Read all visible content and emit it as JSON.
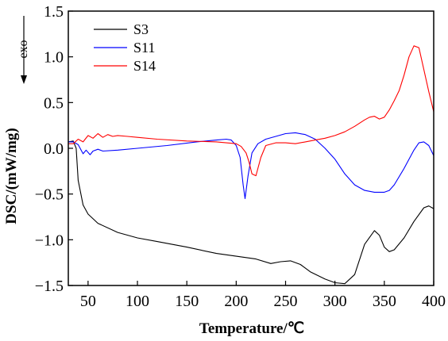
{
  "chart_data": {
    "type": "line",
    "xlabel": "Temperature/℃",
    "ylabel": "DSC/(mW/mg)",
    "xlim": [
      30,
      400
    ],
    "ylim": [
      -1.5,
      1.5
    ],
    "x_ticks": [
      50,
      100,
      150,
      200,
      250,
      300,
      350,
      400
    ],
    "y_ticks": [
      -1.5,
      -1.0,
      -0.5,
      0.0,
      0.5,
      1.0,
      1.5
    ],
    "x_tick_labels": [
      "50",
      "100",
      "150",
      "200",
      "250",
      "300",
      "350",
      "400"
    ],
    "y_tick_labels": [
      "−1.5",
      "−1.0",
      "−0.5",
      "0.0",
      "0.5",
      "1.0",
      "1.5"
    ],
    "annotation": "exo",
    "legend_position": "top-left",
    "series": [
      {
        "name": "S3",
        "color": "#000000",
        "x": [
          30,
          35,
          38,
          40,
          45,
          50,
          60,
          80,
          100,
          120,
          150,
          180,
          200,
          220,
          235,
          245,
          255,
          265,
          275,
          290,
          300,
          310,
          320,
          330,
          340,
          345,
          350,
          355,
          360,
          370,
          380,
          390,
          395,
          400
        ],
        "y": [
          0.07,
          0.08,
          0.0,
          -0.35,
          -0.62,
          -0.72,
          -0.82,
          -0.92,
          -0.98,
          -1.02,
          -1.08,
          -1.15,
          -1.18,
          -1.21,
          -1.26,
          -1.24,
          -1.23,
          -1.27,
          -1.35,
          -1.43,
          -1.47,
          -1.48,
          -1.38,
          -1.05,
          -0.9,
          -0.95,
          -1.08,
          -1.13,
          -1.11,
          -0.98,
          -0.8,
          -0.65,
          -0.63,
          -0.66
        ]
      },
      {
        "name": "S11",
        "color": "#0000ff",
        "x": [
          30,
          35,
          40,
          45,
          48,
          52,
          55,
          60,
          65,
          80,
          100,
          130,
          160,
          180,
          190,
          195,
          200,
          204,
          207,
          209,
          212,
          216,
          222,
          230,
          240,
          250,
          260,
          270,
          280,
          290,
          300,
          310,
          320,
          330,
          340,
          350,
          355,
          360,
          370,
          380,
          385,
          390,
          395,
          400
        ],
        "y": [
          0.07,
          0.07,
          0.04,
          -0.06,
          -0.02,
          -0.07,
          -0.03,
          -0.01,
          -0.03,
          -0.02,
          0.0,
          0.03,
          0.07,
          0.09,
          0.1,
          0.09,
          0.03,
          -0.1,
          -0.4,
          -0.55,
          -0.3,
          -0.05,
          0.05,
          0.1,
          0.13,
          0.16,
          0.17,
          0.15,
          0.1,
          0.0,
          -0.12,
          -0.28,
          -0.4,
          -0.46,
          -0.48,
          -0.48,
          -0.46,
          -0.4,
          -0.22,
          -0.02,
          0.06,
          0.07,
          0.03,
          -0.08
        ]
      },
      {
        "name": "S14",
        "color": "#ff0000",
        "x": [
          30,
          35,
          40,
          45,
          50,
          55,
          60,
          65,
          70,
          75,
          80,
          90,
          100,
          120,
          150,
          180,
          200,
          205,
          210,
          213,
          216,
          220,
          225,
          230,
          240,
          250,
          260,
          270,
          280,
          290,
          300,
          310,
          320,
          330,
          335,
          340,
          345,
          350,
          355,
          360,
          365,
          370,
          375,
          380,
          385,
          390,
          395,
          400
        ],
        "y": [
          0.05,
          0.05,
          0.1,
          0.07,
          0.14,
          0.11,
          0.16,
          0.12,
          0.15,
          0.13,
          0.14,
          0.13,
          0.12,
          0.1,
          0.08,
          0.07,
          0.05,
          0.02,
          -0.05,
          -0.15,
          -0.28,
          -0.3,
          -0.1,
          0.03,
          0.06,
          0.06,
          0.05,
          0.07,
          0.09,
          0.11,
          0.14,
          0.18,
          0.24,
          0.31,
          0.34,
          0.35,
          0.32,
          0.34,
          0.42,
          0.52,
          0.63,
          0.8,
          1.0,
          1.12,
          1.1,
          0.86,
          0.62,
          0.4
        ]
      }
    ]
  }
}
